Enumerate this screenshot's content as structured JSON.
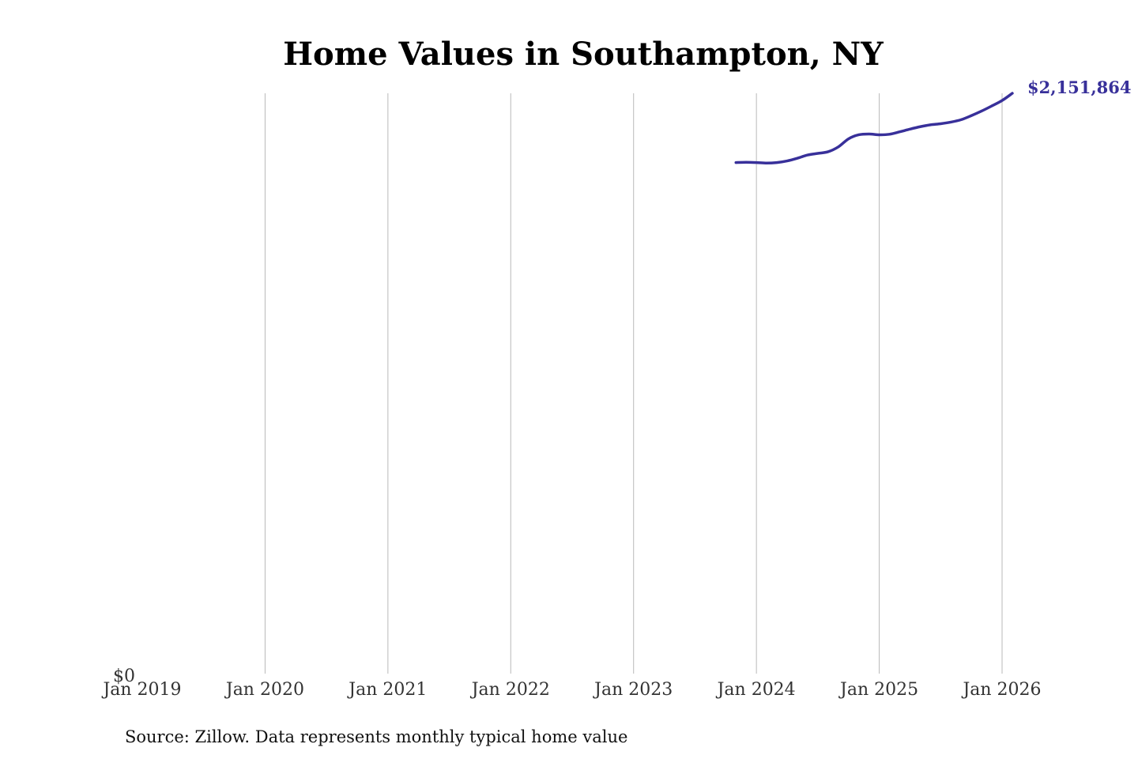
{
  "chart_data": {
    "type": "line",
    "title": "Home Values in Southampton, NY",
    "xlabel": "",
    "ylabel": "",
    "x_ticks": [
      "Jan 2019",
      "Jan 2020",
      "Jan 2021",
      "Jan 2022",
      "Jan 2023",
      "Jan 2024",
      "Jan 2025",
      "Jan 2026"
    ],
    "y_ticks": [
      {
        "label": "$0",
        "value": 0
      }
    ],
    "xlim": [
      "2019-01",
      "2026-01"
    ],
    "ylim": [
      0,
      2151864
    ],
    "grid": {
      "vertical": true,
      "horizontal": false
    },
    "line_color": "#38309a",
    "series": [
      {
        "x": [
          "2023-11",
          "2023-12",
          "2024-01",
          "2024-02",
          "2024-03",
          "2024-04",
          "2024-05",
          "2024-06",
          "2024-07",
          "2024-08",
          "2024-09",
          "2024-10",
          "2024-11",
          "2024-12",
          "2025-01",
          "2025-02",
          "2025-03",
          "2025-04",
          "2025-05",
          "2025-06",
          "2025-07",
          "2025-08",
          "2025-09",
          "2025-10",
          "2025-11",
          "2025-12",
          "2026-01",
          "2026-02"
        ],
        "y": [
          1895000,
          1896000,
          1895000,
          1893000,
          1895000,
          1901000,
          1911000,
          1923000,
          1929000,
          1935000,
          1953000,
          1983000,
          1998000,
          2001000,
          1998000,
          2000000,
          2009000,
          2019000,
          2028000,
          2035000,
          2039000,
          2045000,
          2054000,
          2069000,
          2086000,
          2105000,
          2125000,
          2151864
        ]
      }
    ],
    "end_label": "$2,151,864",
    "source": "Source: Zillow. Data represents monthly typical home value"
  }
}
